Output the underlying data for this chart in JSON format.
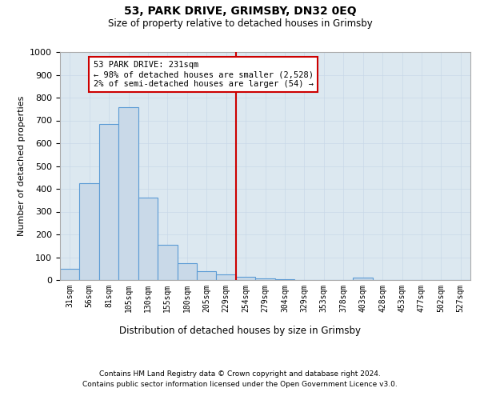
{
  "title1": "53, PARK DRIVE, GRIMSBY, DN32 0EQ",
  "title2": "Size of property relative to detached houses in Grimsby",
  "xlabel": "Distribution of detached houses by size in Grimsby",
  "ylabel": "Number of detached properties",
  "bar_labels": [
    "31sqm",
    "56sqm",
    "81sqm",
    "105sqm",
    "130sqm",
    "155sqm",
    "180sqm",
    "205sqm",
    "229sqm",
    "254sqm",
    "279sqm",
    "304sqm",
    "329sqm",
    "353sqm",
    "378sqm",
    "403sqm",
    "428sqm",
    "453sqm",
    "477sqm",
    "502sqm",
    "527sqm"
  ],
  "bar_values": [
    50,
    425,
    685,
    757,
    363,
    155,
    75,
    38,
    25,
    13,
    8,
    5,
    0,
    0,
    0,
    10,
    0,
    0,
    0,
    0,
    0
  ],
  "bar_color": "#c9d9e8",
  "bar_edge_color": "#5b9bd5",
  "vline_x": 8.5,
  "vline_color": "#cc0000",
  "annotation_text": "53 PARK DRIVE: 231sqm\n← 98% of detached houses are smaller (2,528)\n2% of semi-detached houses are larger (54) →",
  "annotation_box_color": "#cc0000",
  "ylim": [
    0,
    1000
  ],
  "yticks": [
    0,
    100,
    200,
    300,
    400,
    500,
    600,
    700,
    800,
    900,
    1000
  ],
  "grid_color": "#c8d8e8",
  "bg_color": "#dce8f0",
  "footer1": "Contains HM Land Registry data © Crown copyright and database right 2024.",
  "footer2": "Contains public sector information licensed under the Open Government Licence v3.0."
}
